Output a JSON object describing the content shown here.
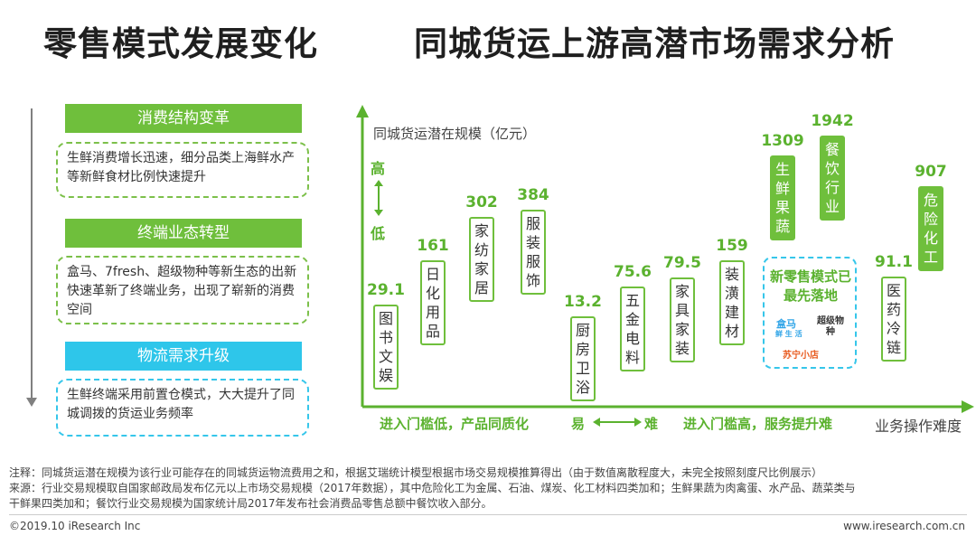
{
  "titles": {
    "left": "零售模式发展变化",
    "right": "同城货运上游高潜市场需求分析"
  },
  "left_panel": {
    "sections": [
      {
        "header": "消费结构变革",
        "text": "生鲜消费增长迅速，细分品类上海鲜水产等新鲜食材比例快速提升"
      },
      {
        "header": "终端业态转型",
        "text": "盒马、7fresh、超级物种等新生态的出新快速革新了终端业务，出现了崭新的消费空间"
      },
      {
        "header": "物流需求升级",
        "text": "生鲜终端采用前置仓模式，大大提升了同城调拨的货运业务频率"
      }
    ]
  },
  "chart_data": {
    "type": "bar",
    "ylabel": "同城货运潜在规模（亿元）",
    "y_high": "高",
    "y_low": "低",
    "xlabel": "业务操作难度",
    "x_left": "进入门槛低，产品同质化",
    "x_mid_easy": "易",
    "x_mid_hard": "难",
    "x_right": "进入门槛高，服务提升难",
    "categories": [
      "图书文娱",
      "日化用品",
      "家纺家居",
      "服装服饰",
      "厨房卫浴",
      "五金电料",
      "家具家装",
      "装潢建材",
      "生鲜果蔬",
      "餐饮行业",
      "医药冷链",
      "危险化工"
    ],
    "values": [
      29.1,
      161,
      302,
      384,
      13.2,
      75.6,
      79.5,
      159,
      1309,
      1942,
      91.1,
      907
    ],
    "highlighted": [
      "生鲜果蔬",
      "餐饮行业",
      "危险化工"
    ],
    "note_values_not_to_scale": true
  },
  "new_retail_box": {
    "title": "新零售模式已最先落地",
    "logos": [
      "盒马",
      "鲜 生 活",
      "超级物种",
      "苏宁小店"
    ]
  },
  "notes": {
    "note": "注释：同城货运潜在规模为该行业可能存在的同城货运物流费用之和，根据艾瑞统计模型根据市场交易规模推算得出（由于数值离散程度大，未完全按照刻度尺比例展示）",
    "source1": "来源：行业交易规模取自国家邮政局发布亿元以上市场交易规模（2017年数据），其中危险化工为金属、石油、煤炭、化工材料四类加和；生鲜果蔬为肉禽蛋、水产品、蔬菜类与",
    "source2": "干鲜果四类加和；餐饮行业交易规模为国家统计局2017年发布社会消费品零售总额中餐饮收入部分。"
  },
  "footer": {
    "copyright": "©2019.10 iResearch Inc",
    "url": "www.iresearch.com.cn"
  },
  "colors": {
    "green": "#6fbf3c",
    "label_green": "#5bb22f",
    "blue": "#2ec6ea"
  }
}
